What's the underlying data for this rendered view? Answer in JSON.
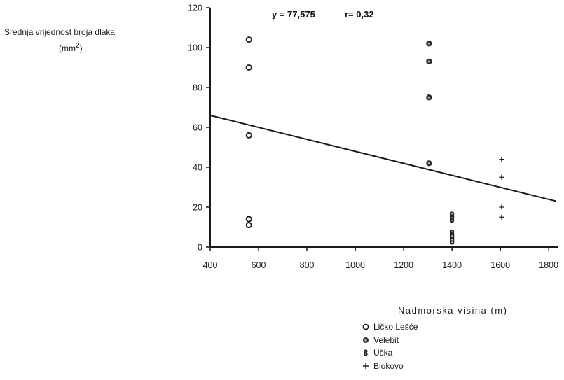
{
  "chart_data": {
    "type": "scatter",
    "title": "",
    "annotation": {
      "equation": "y = 77,575",
      "correlation": "r= 0,32"
    },
    "ylabel_line1": "Srednja  vrijednost  broja dlaka",
    "ylabel_line2": "(mm",
    "ylabel_sup": "2",
    "ylabel_close": ")",
    "xlabel": "Nadmorska  visina  (m)",
    "xlim": [
      400,
      1840
    ],
    "ylim": [
      0,
      120
    ],
    "xticks": [
      400,
      600,
      800,
      1000,
      1200,
      1400,
      1600,
      1800
    ],
    "yticks": [
      0,
      20,
      40,
      60,
      80,
      100,
      120
    ],
    "grid": false,
    "legend_position": "bottom-right, below the x-axis label",
    "regression_line": {
      "x": [
        400,
        1830
      ],
      "y": [
        66,
        23
      ]
    },
    "series": [
      {
        "name": "Ličko  Lešće",
        "marker": "open-circle",
        "points": [
          [
            560,
            104
          ],
          [
            560,
            90
          ],
          [
            560,
            56
          ],
          [
            560,
            14
          ],
          [
            560,
            11
          ]
        ]
      },
      {
        "name": "Velebit",
        "marker": "filled-circle",
        "points": [
          [
            1305,
            102
          ],
          [
            1305,
            93
          ],
          [
            1305,
            75
          ],
          [
            1305,
            42
          ]
        ]
      },
      {
        "name": "Učka",
        "marker": "stacked-circles",
        "points": [
          [
            1400,
            16
          ],
          [
            1400,
            14
          ],
          [
            1400,
            7
          ],
          [
            1400,
            5
          ],
          [
            1400,
            3
          ]
        ]
      },
      {
        "name": "Biokovo",
        "marker": "plus",
        "points": [
          [
            1605,
            44
          ],
          [
            1605,
            35
          ],
          [
            1605,
            20
          ],
          [
            1605,
            15
          ]
        ]
      }
    ]
  }
}
